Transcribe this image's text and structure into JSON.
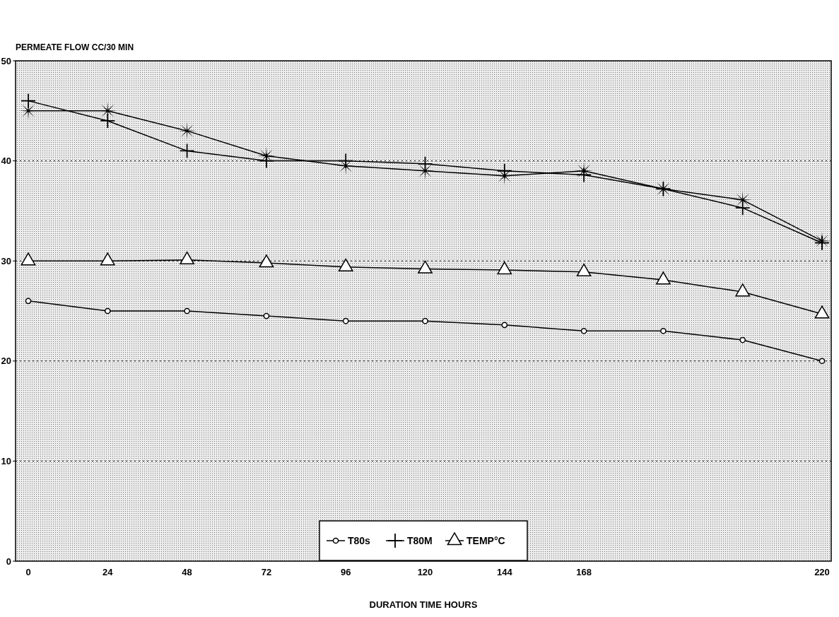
{
  "chart_data": {
    "type": "line",
    "xlabel": "DURATION TIME HOURS",
    "ylabel": "PERMEATE FLOW CC/30 MIN",
    "categories": [
      "0",
      "24",
      "48",
      "72",
      "96",
      "120",
      "144",
      "168",
      null,
      null,
      "220"
    ],
    "series": [
      {
        "name": "T80s",
        "color": "#000000",
        "marker": "circle",
        "values": [
          26,
          25,
          25,
          24.5,
          24,
          24,
          23.6,
          23,
          23,
          22.1,
          20
        ]
      },
      {
        "name": "T80M",
        "color": "#000000",
        "marker": "cross",
        "values": [
          46,
          44,
          41,
          40,
          40,
          39.7,
          39,
          38.6,
          37.2,
          35.3,
          31.8
        ]
      },
      {
        "color": "#000000",
        "marker": "star",
        "values": [
          45,
          45,
          43,
          40.5,
          39.5,
          39,
          38.5,
          39,
          37.2,
          36.1,
          32
        ]
      },
      {
        "name": "TEMP°C",
        "color": "#000000",
        "marker": "triangle",
        "values": [
          30,
          30,
          30.1,
          29.8,
          29.4,
          29.2,
          29.1,
          28.9,
          28.1,
          26.9,
          24.7
        ]
      }
    ],
    "ylim": [
      0,
      50
    ],
    "yticks": [
      0,
      10,
      20,
      30,
      40,
      50
    ],
    "grid": "y",
    "legend": "bottom"
  }
}
